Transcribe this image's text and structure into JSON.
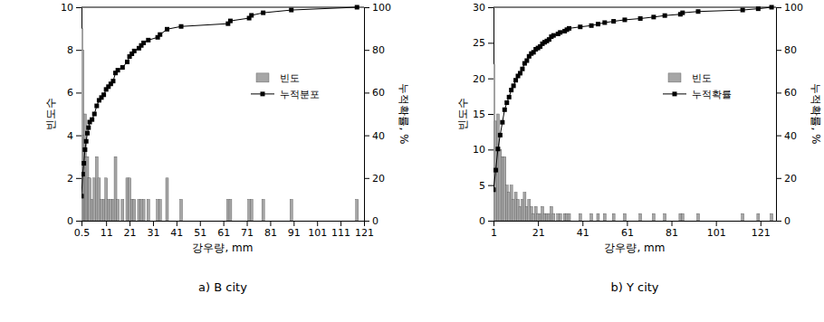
{
  "chart_data": [
    {
      "type": "bar",
      "caption": "a) B city",
      "xlabel": "강우량, mm",
      "ylabel": "빈도수",
      "y2label": "누적확률, %",
      "legend": "right",
      "x": [
        0.5,
        1,
        1.5,
        2,
        2.5,
        3,
        3.5,
        4,
        5,
        6,
        7,
        8,
        9,
        10,
        11,
        12,
        13,
        14,
        15,
        16,
        18,
        20,
        21,
        22,
        23,
        25,
        26,
        27,
        29,
        33,
        34,
        37,
        43,
        63,
        64,
        72,
        73,
        78,
        90,
        118
      ],
      "series": [
        {
          "name": "빈도",
          "type": "bar",
          "color": "#a6a6a6",
          "values": [
            9,
            8,
            4,
            5,
            3,
            3,
            2,
            2,
            1,
            2,
            3,
            2,
            1,
            1,
            2,
            1,
            1,
            1,
            3,
            1,
            1,
            2,
            2,
            1,
            1,
            1,
            1,
            1,
            1,
            1,
            1,
            2,
            1,
            1,
            1,
            1,
            1,
            1,
            1,
            1
          ]
        },
        {
          "name": "누적분포",
          "type": "line",
          "axis": "y2",
          "color": "#000000",
          "marker": "square",
          "values": [
            11.5,
            21.8,
            26.9,
            33.3,
            37.2,
            41.0,
            43.6,
            46.2,
            47.4,
            50.0,
            53.8,
            56.4,
            57.7,
            59.0,
            61.5,
            62.8,
            64.1,
            65.4,
            69.2,
            70.5,
            71.8,
            74.4,
            76.9,
            78.2,
            79.5,
            80.8,
            82.1,
            83.3,
            84.6,
            85.9,
            87.2,
            89.7,
            91.0,
            92.3,
            93.6,
            94.9,
            96.2,
            97.4,
            98.7,
            100
          ]
        }
      ],
      "xlim": [
        0.5,
        121
      ],
      "xticks": [
        0.5,
        11,
        21,
        31,
        41,
        51,
        61,
        71,
        81,
        91,
        101,
        111,
        121
      ],
      "ylim": [
        0,
        10
      ],
      "yticks": [
        0,
        2,
        4,
        6,
        8,
        10
      ],
      "y2lim": [
        0,
        100
      ],
      "y2ticks": [
        0,
        20,
        40,
        60,
        80,
        100
      ]
    },
    {
      "type": "bar",
      "caption": "b) Y city",
      "xlabel": "강우량, mm",
      "ylabel": "빈도수",
      "y2label": "누적확률, %",
      "legend": "right",
      "x": [
        1,
        2,
        3,
        4,
        5,
        6,
        7,
        8,
        9,
        10,
        11,
        12,
        13,
        14,
        15,
        16,
        17,
        18,
        19,
        20,
        21,
        22,
        23,
        24,
        25,
        26,
        27,
        28,
        30,
        31,
        33,
        34,
        35,
        40,
        45,
        48,
        51,
        55,
        60,
        67,
        73,
        78,
        85,
        86,
        93,
        113,
        120,
        126
      ],
      "series": [
        {
          "name": "빈도",
          "type": "bar",
          "color": "#a6a6a6",
          "values": [
            22,
            14,
            15,
            10,
            9,
            9,
            5,
            4,
            5,
            3,
            4,
            3,
            2,
            3,
            4,
            2,
            3,
            2,
            1,
            2,
            1,
            1,
            2,
            1,
            1,
            1,
            2,
            1,
            1,
            1,
            1,
            1,
            1,
            1,
            1,
            1,
            1,
            1,
            1,
            1,
            1,
            1,
            1,
            1,
            1,
            1,
            1,
            1
          ]
        },
        {
          "name": "누적확률",
          "type": "line",
          "axis": "y2",
          "color": "#000000",
          "marker": "square",
          "values": [
            14.5,
            23.7,
            33.6,
            40.1,
            46.1,
            52.0,
            55.3,
            57.9,
            61.2,
            63.2,
            65.8,
            67.8,
            69.1,
            71.1,
            73.7,
            75.0,
            77.0,
            78.3,
            78.9,
            80.3,
            80.9,
            81.6,
            82.9,
            83.6,
            84.2,
            84.9,
            86.2,
            86.8,
            87.5,
            88.2,
            88.8,
            89.5,
            90.1,
            90.8,
            91.4,
            92.1,
            92.8,
            93.4,
            94.1,
            94.7,
            95.4,
            96.1,
            96.7,
            97.4,
            98.0,
            98.7,
            99.3,
            100
          ]
        }
      ],
      "xlim": [
        1,
        128
      ],
      "xticks": [
        1,
        21,
        41,
        61,
        81,
        101,
        121
      ],
      "ylim": [
        0,
        30
      ],
      "yticks": [
        0,
        5,
        10,
        15,
        20,
        25,
        30
      ],
      "y2lim": [
        0,
        100
      ],
      "y2ticks": [
        0,
        20,
        40,
        60,
        80,
        100
      ]
    }
  ]
}
